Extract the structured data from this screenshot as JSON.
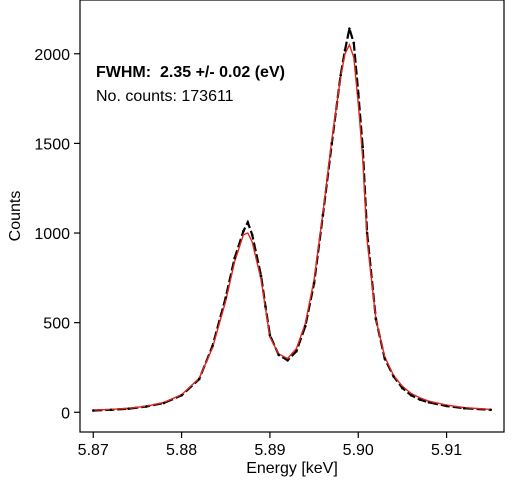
{
  "chart_data": {
    "type": "line",
    "xlabel": "Energy [keV]",
    "ylabel": "Counts",
    "xlim": [
      5.8685,
      5.9165
    ],
    "ylim": [
      -110,
      2300
    ],
    "xticks": [
      5.87,
      5.88,
      5.89,
      5.9,
      5.91
    ],
    "xtick_labels": [
      "5.87",
      "5.88",
      "5.89",
      "5.90",
      "5.91"
    ],
    "yticks": [
      0,
      500,
      1000,
      1500,
      2000
    ],
    "ytick_labels": [
      "0",
      "500",
      "1000",
      "1500",
      "2000"
    ],
    "grid": false,
    "annotations": {
      "fwhm": "FWHM:  2.35 +/- 0.02 (eV)",
      "counts": "No. counts: 173611"
    },
    "series": [
      {
        "style": "data",
        "color": "#000000",
        "x": [
          5.87,
          5.872,
          5.874,
          5.876,
          5.878,
          5.88,
          5.882,
          5.8835,
          5.885,
          5.886,
          5.887,
          5.8875,
          5.888,
          5.889,
          5.8895,
          5.89,
          5.891,
          5.892,
          5.893,
          5.894,
          5.895,
          5.896,
          5.897,
          5.898,
          5.8985,
          5.899,
          5.8995,
          5.9,
          5.9005,
          5.901,
          5.902,
          5.903,
          5.904,
          5.905,
          5.906,
          5.907,
          5.908,
          5.91,
          5.912,
          5.915
        ],
        "y": [
          10,
          14,
          20,
          32,
          52,
          95,
          185,
          370,
          640,
          860,
          1010,
          1060,
          990,
          760,
          590,
          430,
          320,
          290,
          340,
          480,
          720,
          1100,
          1500,
          1880,
          2020,
          2140,
          2060,
          1780,
          1480,
          1000,
          520,
          300,
          200,
          135,
          95,
          70,
          55,
          35,
          22,
          14
        ]
      },
      {
        "style": "fit",
        "color": "#e0251e",
        "x": [
          5.87,
          5.872,
          5.874,
          5.876,
          5.878,
          5.88,
          5.882,
          5.8835,
          5.885,
          5.886,
          5.887,
          5.8875,
          5.888,
          5.889,
          5.8895,
          5.89,
          5.891,
          5.892,
          5.893,
          5.894,
          5.895,
          5.896,
          5.897,
          5.898,
          5.8985,
          5.899,
          5.8995,
          5.9,
          5.9005,
          5.901,
          5.902,
          5.903,
          5.904,
          5.905,
          5.906,
          5.907,
          5.908,
          5.91,
          5.912,
          5.915
        ],
        "y": [
          12,
          16,
          22,
          34,
          55,
          98,
          190,
          360,
          620,
          840,
          990,
          1000,
          950,
          740,
          580,
          420,
          325,
          300,
          355,
          495,
          740,
          1110,
          1520,
          1870,
          2000,
          2050,
          1980,
          1720,
          1420,
          960,
          520,
          310,
          205,
          145,
          105,
          80,
          62,
          40,
          26,
          16
        ]
      }
    ]
  }
}
